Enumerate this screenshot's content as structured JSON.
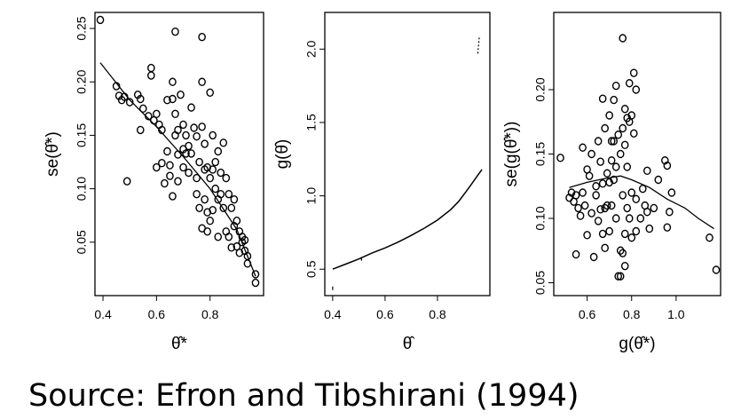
{
  "caption": "Source: Efron and Tibshirani (1994)",
  "chart_data": [
    {
      "type": "scatter",
      "xlabel": "θ̂*",
      "ylabel": "se(θ̂*)",
      "xlim": [
        0.37,
        1.0
      ],
      "ylim": [
        0.0,
        0.265
      ],
      "xticks": [
        {
          "v": 0.4,
          "label": "0.4"
        },
        {
          "v": 0.6,
          "label": "0.6"
        },
        {
          "v": 0.8,
          "label": "0.8"
        }
      ],
      "yticks": [
        {
          "v": 0.05,
          "label": "0.05"
        },
        {
          "v": 0.1,
          "label": "0.10"
        },
        {
          "v": 0.15,
          "label": "0.15"
        },
        {
          "v": 0.2,
          "label": "0.20"
        },
        {
          "v": 0.25,
          "label": "0.25"
        }
      ],
      "points": [
        [
          0.39,
          0.258
        ],
        [
          0.45,
          0.196
        ],
        [
          0.46,
          0.187
        ],
        [
          0.47,
          0.183
        ],
        [
          0.48,
          0.186
        ],
        [
          0.49,
          0.107
        ],
        [
          0.5,
          0.181
        ],
        [
          0.53,
          0.188
        ],
        [
          0.54,
          0.184
        ],
        [
          0.54,
          0.155
        ],
        [
          0.55,
          0.175
        ],
        [
          0.57,
          0.168
        ],
        [
          0.58,
          0.213
        ],
        [
          0.58,
          0.206
        ],
        [
          0.59,
          0.164
        ],
        [
          0.6,
          0.12
        ],
        [
          0.6,
          0.17
        ],
        [
          0.61,
          0.16
        ],
        [
          0.62,
          0.155
        ],
        [
          0.62,
          0.124
        ],
        [
          0.63,
          0.105
        ],
        [
          0.64,
          0.183
        ],
        [
          0.64,
          0.135
        ],
        [
          0.65,
          0.112
        ],
        [
          0.65,
          0.122
        ],
        [
          0.66,
          0.2
        ],
        [
          0.66,
          0.184
        ],
        [
          0.66,
          0.093
        ],
        [
          0.67,
          0.247
        ],
        [
          0.67,
          0.17
        ],
        [
          0.67,
          0.15
        ],
        [
          0.68,
          0.155
        ],
        [
          0.68,
          0.132
        ],
        [
          0.68,
          0.107
        ],
        [
          0.69,
          0.188
        ],
        [
          0.7,
          0.16
        ],
        [
          0.7,
          0.137
        ],
        [
          0.7,
          0.12
        ],
        [
          0.71,
          0.15
        ],
        [
          0.71,
          0.133
        ],
        [
          0.72,
          0.14
        ],
        [
          0.72,
          0.115
        ],
        [
          0.73,
          0.176
        ],
        [
          0.73,
          0.133
        ],
        [
          0.74,
          0.157
        ],
        [
          0.75,
          0.149
        ],
        [
          0.75,
          0.11
        ],
        [
          0.75,
          0.095
        ],
        [
          0.76,
          0.125
        ],
        [
          0.76,
          0.082
        ],
        [
          0.77,
          0.242
        ],
        [
          0.77,
          0.2
        ],
        [
          0.77,
          0.158
        ],
        [
          0.77,
          0.063
        ],
        [
          0.78,
          0.142
        ],
        [
          0.78,
          0.118
        ],
        [
          0.78,
          0.09
        ],
        [
          0.79,
          0.12
        ],
        [
          0.79,
          0.078
        ],
        [
          0.79,
          0.06
        ],
        [
          0.8,
          0.19
        ],
        [
          0.8,
          0.11
        ],
        [
          0.8,
          0.07
        ],
        [
          0.81,
          0.15
        ],
        [
          0.81,
          0.118
        ],
        [
          0.81,
          0.08
        ],
        [
          0.82,
          0.125
        ],
        [
          0.82,
          0.1
        ],
        [
          0.83,
          0.135
        ],
        [
          0.83,
          0.09
        ],
        [
          0.83,
          0.055
        ],
        [
          0.84,
          0.115
        ],
        [
          0.84,
          0.095
        ],
        [
          0.85,
          0.143
        ],
        [
          0.85,
          0.082
        ],
        [
          0.86,
          0.11
        ],
        [
          0.86,
          0.06
        ],
        [
          0.87,
          0.095
        ],
        [
          0.87,
          0.055
        ],
        [
          0.88,
          0.082
        ],
        [
          0.88,
          0.045
        ],
        [
          0.89,
          0.09
        ],
        [
          0.89,
          0.065
        ],
        [
          0.9,
          0.07
        ],
        [
          0.9,
          0.046
        ],
        [
          0.91,
          0.06
        ],
        [
          0.91,
          0.04
        ],
        [
          0.92,
          0.05
        ],
        [
          0.92,
          0.055
        ],
        [
          0.93,
          0.042
        ],
        [
          0.93,
          0.052
        ],
        [
          0.94,
          0.037
        ],
        [
          0.94,
          0.03
        ],
        [
          0.97,
          0.02
        ],
        [
          0.97,
          0.012
        ]
      ],
      "fit": [
        [
          0.39,
          0.218
        ],
        [
          0.5,
          0.183
        ],
        [
          0.6,
          0.158
        ],
        [
          0.7,
          0.13
        ],
        [
          0.8,
          0.1
        ],
        [
          0.9,
          0.062
        ],
        [
          0.97,
          0.018
        ]
      ]
    },
    {
      "type": "line",
      "xlabel": "θ̂",
      "ylabel": "g(θ̂)",
      "xlim": [
        0.37,
        1.0
      ],
      "ylim": [
        0.32,
        2.25
      ],
      "xticks": [
        {
          "v": 0.4,
          "label": "0.4"
        },
        {
          "v": 0.6,
          "label": "0.6"
        },
        {
          "v": 0.8,
          "label": "0.8"
        }
      ],
      "yticks": [
        {
          "v": 0.5,
          "label": "0.5"
        },
        {
          "v": 1.0,
          "label": "1.0"
        },
        {
          "v": 1.5,
          "label": "1.5"
        },
        {
          "v": 2.0,
          "label": "2.0"
        }
      ],
      "line": [
        [
          0.4,
          0.5
        ],
        [
          0.45,
          0.535
        ],
        [
          0.5,
          0.57
        ],
        [
          0.55,
          0.61
        ],
        [
          0.6,
          0.645
        ],
        [
          0.65,
          0.685
        ],
        [
          0.7,
          0.73
        ],
        [
          0.75,
          0.78
        ],
        [
          0.8,
          0.835
        ],
        [
          0.85,
          0.905
        ],
        [
          0.88,
          0.96
        ],
        [
          0.91,
          1.03
        ],
        [
          0.93,
          1.08
        ],
        [
          0.95,
          1.13
        ],
        [
          0.97,
          1.18
        ]
      ],
      "line_upper": [
        [
          0.954,
          1.97
        ],
        [
          0.957,
          2.03
        ],
        [
          0.96,
          2.09
        ]
      ],
      "marks": [
        [
          0.4,
          0.37
        ],
        [
          0.51,
          0.57
        ]
      ]
    },
    {
      "type": "scatter",
      "xlabel": "g(θ̂*)",
      "ylabel": "se(g(θ̂*))",
      "xlim": [
        0.45,
        1.2
      ],
      "ylim": [
        0.04,
        0.26
      ],
      "xticks": [
        {
          "v": 0.6,
          "label": "0.6"
        },
        {
          "v": 0.8,
          "label": "0.8"
        },
        {
          "v": 1.0,
          "label": "1.0"
        }
      ],
      "yticks": [
        {
          "v": 0.05,
          "label": "0.05"
        },
        {
          "v": 0.1,
          "label": "0.10"
        },
        {
          "v": 0.15,
          "label": "0.15"
        },
        {
          "v": 0.2,
          "label": "0.20"
        }
      ],
      "points": [
        [
          0.48,
          0.147
        ],
        [
          0.52,
          0.116
        ],
        [
          0.53,
          0.12
        ],
        [
          0.54,
          0.113
        ],
        [
          0.55,
          0.072
        ],
        [
          0.55,
          0.118
        ],
        [
          0.56,
          0.108
        ],
        [
          0.57,
          0.102
        ],
        [
          0.58,
          0.12
        ],
        [
          0.58,
          0.155
        ],
        [
          0.59,
          0.11
        ],
        [
          0.6,
          0.138
        ],
        [
          0.6,
          0.087
        ],
        [
          0.61,
          0.133
        ],
        [
          0.62,
          0.15
        ],
        [
          0.62,
          0.104
        ],
        [
          0.63,
          0.07
        ],
        [
          0.64,
          0.118
        ],
        [
          0.64,
          0.125
        ],
        [
          0.65,
          0.16
        ],
        [
          0.65,
          0.098
        ],
        [
          0.66,
          0.144
        ],
        [
          0.66,
          0.107
        ],
        [
          0.67,
          0.193
        ],
        [
          0.67,
          0.127
        ],
        [
          0.67,
          0.088
        ],
        [
          0.68,
          0.17
        ],
        [
          0.68,
          0.108
        ],
        [
          0.68,
          0.077
        ],
        [
          0.69,
          0.135
        ],
        [
          0.69,
          0.11
        ],
        [
          0.7,
          0.18
        ],
        [
          0.7,
          0.128
        ],
        [
          0.7,
          0.09
        ],
        [
          0.71,
          0.16
        ],
        [
          0.71,
          0.145
        ],
        [
          0.71,
          0.11
        ],
        [
          0.72,
          0.192
        ],
        [
          0.72,
          0.16
        ],
        [
          0.72,
          0.13
        ],
        [
          0.73,
          0.203
        ],
        [
          0.73,
          0.14
        ],
        [
          0.73,
          0.1
        ],
        [
          0.74,
          0.165
        ],
        [
          0.74,
          0.055
        ],
        [
          0.75,
          0.15
        ],
        [
          0.75,
          0.075
        ],
        [
          0.75,
          0.055
        ],
        [
          0.76,
          0.24
        ],
        [
          0.76,
          0.17
        ],
        [
          0.76,
          0.118
        ],
        [
          0.76,
          0.073
        ],
        [
          0.77,
          0.185
        ],
        [
          0.77,
          0.157
        ],
        [
          0.77,
          0.088
        ],
        [
          0.77,
          0.063
        ],
        [
          0.78,
          0.178
        ],
        [
          0.78,
          0.14
        ],
        [
          0.78,
          0.108
        ],
        [
          0.79,
          0.205
        ],
        [
          0.79,
          0.175
        ],
        [
          0.79,
          0.1
        ],
        [
          0.8,
          0.18
        ],
        [
          0.8,
          0.12
        ],
        [
          0.8,
          0.085
        ],
        [
          0.81,
          0.213
        ],
        [
          0.81,
          0.166
        ],
        [
          0.82,
          0.2
        ],
        [
          0.82,
          0.115
        ],
        [
          0.82,
          0.09
        ],
        [
          0.84,
          0.1
        ],
        [
          0.85,
          0.123
        ],
        [
          0.86,
          0.11
        ],
        [
          0.87,
          0.105
        ],
        [
          0.87,
          0.137
        ],
        [
          0.88,
          0.092
        ],
        [
          0.9,
          0.108
        ],
        [
          0.92,
          0.13
        ],
        [
          0.95,
          0.145
        ],
        [
          0.96,
          0.141
        ],
        [
          0.96,
          0.093
        ],
        [
          0.97,
          0.105
        ],
        [
          0.98,
          0.12
        ],
        [
          1.15,
          0.085
        ],
        [
          1.18,
          0.06
        ]
      ],
      "fit": [
        [
          0.52,
          0.124
        ],
        [
          0.6,
          0.128
        ],
        [
          0.68,
          0.131
        ],
        [
          0.75,
          0.133
        ],
        [
          0.8,
          0.13
        ],
        [
          0.88,
          0.124
        ],
        [
          0.96,
          0.115
        ],
        [
          1.04,
          0.108
        ],
        [
          1.1,
          0.1
        ],
        [
          1.17,
          0.092
        ]
      ]
    }
  ]
}
